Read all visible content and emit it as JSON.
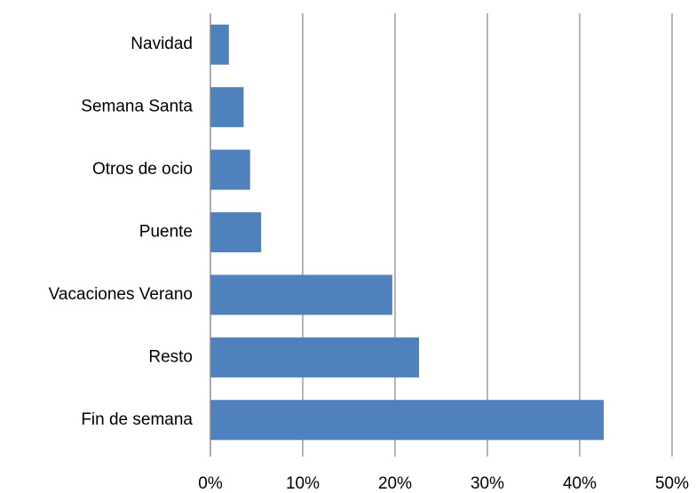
{
  "chart_data": {
    "type": "hbar",
    "categories": [
      "Navidad",
      "Semana Santa",
      "Otros de ocio",
      "Puente",
      "Vacaciones Verano",
      "Resto",
      "Fin de semana"
    ],
    "values": [
      2.0,
      3.6,
      4.3,
      5.5,
      19.7,
      22.6,
      42.6
    ],
    "color": "#4f81bd",
    "xlim": [
      0,
      50
    ],
    "xticks": [
      {
        "value": 0,
        "label": "0%"
      },
      {
        "value": 10,
        "label": "10%"
      },
      {
        "value": 20,
        "label": "20%"
      },
      {
        "value": 30,
        "label": "30%"
      },
      {
        "value": 40,
        "label": "40%"
      },
      {
        "value": 50,
        "label": "50%"
      }
    ],
    "grid": true
  }
}
